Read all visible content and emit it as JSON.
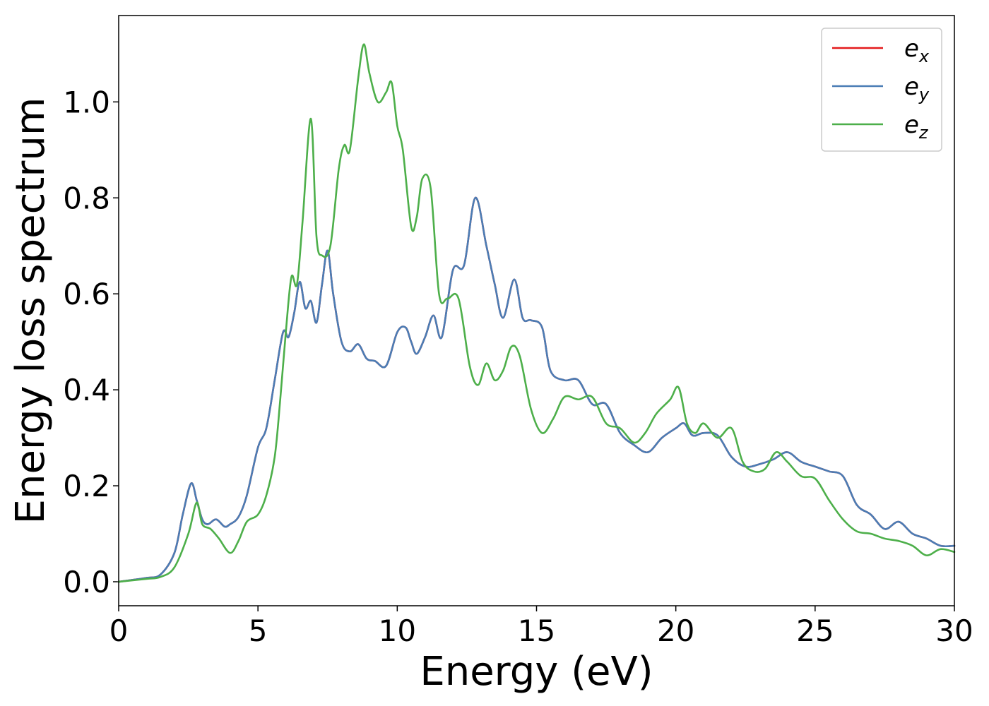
{
  "chart_data": {
    "type": "line",
    "title": "",
    "xlabel": "Energy (eV)",
    "ylabel": "Energy loss spectrum",
    "xlim": [
      0,
      30
    ],
    "ylim": [
      -0.05,
      1.18
    ],
    "xticks": [
      0,
      5,
      10,
      15,
      20,
      25,
      30
    ],
    "xtick_labels": [
      "0",
      "5",
      "10",
      "15",
      "20",
      "25",
      "30"
    ],
    "yticks": [
      0.0,
      0.2,
      0.4,
      0.6,
      0.8,
      1.0
    ],
    "ytick_labels": [
      "0.0",
      "0.2",
      "0.4",
      "0.6",
      "0.8",
      "1.0"
    ],
    "grid": false,
    "legend_position": "top-right",
    "series": [
      {
        "name": "e_x",
        "label_base": "e",
        "label_sub": "x",
        "color": "#e41a1c",
        "x": [
          0,
          1,
          1.5,
          2,
          2.3,
          2.6,
          2.8,
          3.0,
          3.2,
          3.5,
          3.8,
          4.0,
          4.3,
          4.6,
          5.0,
          5.3,
          5.6,
          5.9,
          6.1,
          6.3,
          6.5,
          6.7,
          6.9,
          7.1,
          7.3,
          7.5,
          7.7,
          8.0,
          8.3,
          8.6,
          8.9,
          9.2,
          9.6,
          10.0,
          10.3,
          10.5,
          10.7,
          11.0,
          11.3,
          11.6,
          12.0,
          12.4,
          12.8,
          13.2,
          13.5,
          13.8,
          14.2,
          14.5,
          14.8,
          15.2,
          15.5,
          16.0,
          16.5,
          17.0,
          17.5,
          18.0,
          18.5,
          19.0,
          19.5,
          20.0,
          20.3,
          20.6,
          21.0,
          21.5,
          22.0,
          22.5,
          23.0,
          23.5,
          24.0,
          24.5,
          25.0,
          25.5,
          26.0,
          26.5,
          27.0,
          27.5,
          28.0,
          28.5,
          29.0,
          29.5,
          30.0
        ],
        "y": [
          0.0,
          0.008,
          0.015,
          0.06,
          0.14,
          0.205,
          0.17,
          0.13,
          0.12,
          0.13,
          0.115,
          0.12,
          0.135,
          0.18,
          0.28,
          0.32,
          0.42,
          0.52,
          0.51,
          0.56,
          0.625,
          0.57,
          0.585,
          0.54,
          0.62,
          0.69,
          0.6,
          0.5,
          0.48,
          0.495,
          0.465,
          0.46,
          0.45,
          0.52,
          0.53,
          0.5,
          0.475,
          0.51,
          0.555,
          0.51,
          0.65,
          0.66,
          0.8,
          0.7,
          0.62,
          0.55,
          0.63,
          0.55,
          0.545,
          0.53,
          0.44,
          0.42,
          0.42,
          0.37,
          0.37,
          0.31,
          0.285,
          0.27,
          0.3,
          0.32,
          0.33,
          0.305,
          0.31,
          0.305,
          0.26,
          0.24,
          0.245,
          0.255,
          0.27,
          0.25,
          0.24,
          0.23,
          0.22,
          0.16,
          0.14,
          0.11,
          0.125,
          0.1,
          0.09,
          0.075,
          0.075
        ]
      },
      {
        "name": "e_y",
        "label_base": "e",
        "label_sub": "y",
        "color": "#4a7db5",
        "x": [
          0,
          1,
          1.5,
          2,
          2.3,
          2.6,
          2.8,
          3.0,
          3.2,
          3.5,
          3.8,
          4.0,
          4.3,
          4.6,
          5.0,
          5.3,
          5.6,
          5.9,
          6.1,
          6.3,
          6.5,
          6.7,
          6.9,
          7.1,
          7.3,
          7.5,
          7.7,
          8.0,
          8.3,
          8.6,
          8.9,
          9.2,
          9.6,
          10.0,
          10.3,
          10.5,
          10.7,
          11.0,
          11.3,
          11.6,
          12.0,
          12.4,
          12.8,
          13.2,
          13.5,
          13.8,
          14.2,
          14.5,
          14.8,
          15.2,
          15.5,
          16.0,
          16.5,
          17.0,
          17.5,
          18.0,
          18.5,
          19.0,
          19.5,
          20.0,
          20.3,
          20.6,
          21.0,
          21.5,
          22.0,
          22.5,
          23.0,
          23.5,
          24.0,
          24.5,
          25.0,
          25.5,
          26.0,
          26.5,
          27.0,
          27.5,
          28.0,
          28.5,
          29.0,
          29.5,
          30.0
        ],
        "y": [
          0.0,
          0.008,
          0.015,
          0.06,
          0.14,
          0.205,
          0.17,
          0.13,
          0.12,
          0.13,
          0.115,
          0.12,
          0.135,
          0.18,
          0.28,
          0.32,
          0.42,
          0.52,
          0.51,
          0.56,
          0.625,
          0.57,
          0.585,
          0.54,
          0.62,
          0.69,
          0.6,
          0.5,
          0.48,
          0.495,
          0.465,
          0.46,
          0.45,
          0.52,
          0.53,
          0.5,
          0.475,
          0.51,
          0.555,
          0.51,
          0.65,
          0.66,
          0.8,
          0.7,
          0.62,
          0.55,
          0.63,
          0.55,
          0.545,
          0.53,
          0.44,
          0.42,
          0.42,
          0.37,
          0.37,
          0.31,
          0.285,
          0.27,
          0.3,
          0.32,
          0.33,
          0.305,
          0.31,
          0.305,
          0.26,
          0.24,
          0.245,
          0.255,
          0.27,
          0.25,
          0.24,
          0.23,
          0.22,
          0.16,
          0.14,
          0.11,
          0.125,
          0.1,
          0.09,
          0.075,
          0.075
        ]
      },
      {
        "name": "e_z",
        "label_base": "e",
        "label_sub": "z",
        "color": "#4daf4a",
        "x": [
          0,
          1,
          1.5,
          2,
          2.5,
          2.8,
          3.0,
          3.3,
          3.6,
          4.0,
          4.3,
          4.6,
          5.0,
          5.3,
          5.6,
          5.8,
          6.0,
          6.2,
          6.4,
          6.6,
          6.9,
          7.1,
          7.3,
          7.6,
          7.9,
          8.1,
          8.3,
          8.6,
          8.8,
          9.0,
          9.3,
          9.6,
          9.8,
          10.0,
          10.2,
          10.5,
          10.7,
          10.9,
          11.2,
          11.5,
          11.8,
          12.2,
          12.6,
          12.9,
          13.2,
          13.5,
          13.8,
          14.1,
          14.4,
          14.8,
          15.2,
          15.6,
          16.0,
          16.5,
          17.0,
          17.5,
          18.0,
          18.5,
          18.9,
          19.3,
          19.8,
          20.1,
          20.4,
          20.7,
          21.0,
          21.5,
          22.0,
          22.4,
          22.8,
          23.2,
          23.6,
          24.0,
          24.5,
          25.0,
          25.5,
          26.0,
          26.5,
          27.0,
          27.5,
          28.0,
          28.5,
          29.0,
          29.5,
          30.0
        ],
        "y": [
          0.0,
          0.006,
          0.01,
          0.03,
          0.1,
          0.165,
          0.12,
          0.11,
          0.09,
          0.06,
          0.085,
          0.125,
          0.14,
          0.18,
          0.26,
          0.38,
          0.52,
          0.635,
          0.62,
          0.75,
          0.965,
          0.72,
          0.68,
          0.7,
          0.86,
          0.91,
          0.9,
          1.05,
          1.12,
          1.06,
          1.0,
          1.02,
          1.04,
          0.95,
          0.9,
          0.74,
          0.76,
          0.84,
          0.82,
          0.6,
          0.59,
          0.59,
          0.45,
          0.41,
          0.455,
          0.42,
          0.44,
          0.49,
          0.47,
          0.36,
          0.31,
          0.34,
          0.385,
          0.38,
          0.385,
          0.33,
          0.32,
          0.29,
          0.31,
          0.35,
          0.38,
          0.405,
          0.33,
          0.31,
          0.33,
          0.3,
          0.32,
          0.25,
          0.23,
          0.235,
          0.27,
          0.25,
          0.22,
          0.215,
          0.17,
          0.13,
          0.105,
          0.1,
          0.09,
          0.085,
          0.075,
          0.055,
          0.068,
          0.062
        ]
      }
    ]
  }
}
